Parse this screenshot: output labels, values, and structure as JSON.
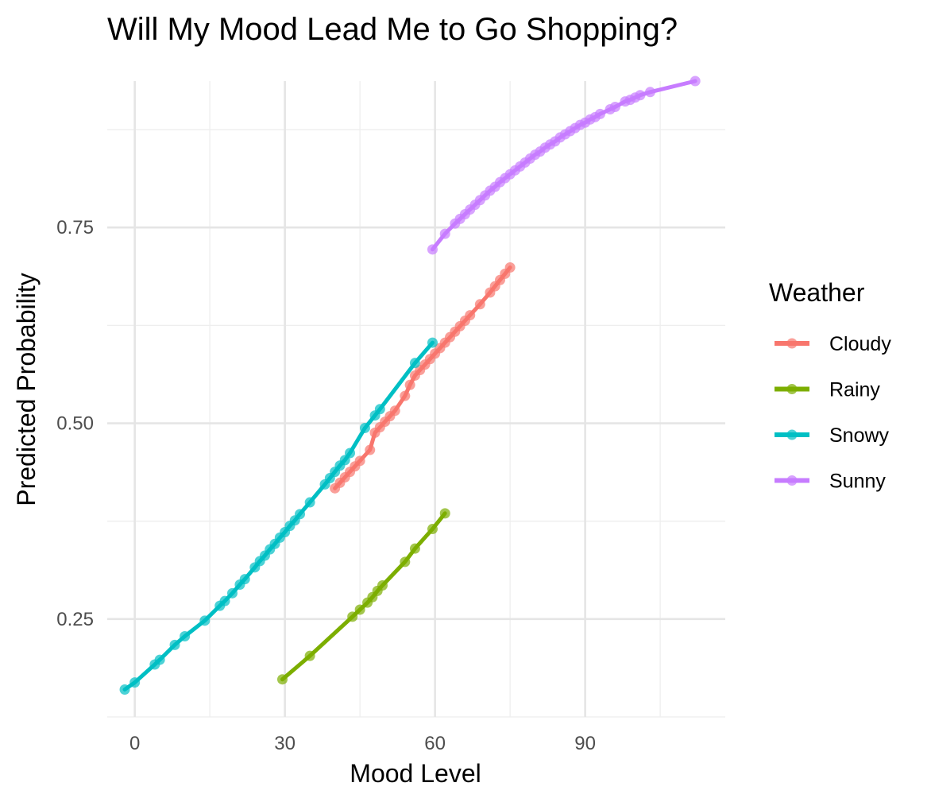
{
  "chart_data": {
    "type": "line",
    "title": "Will My Mood Lead Me to Go Shopping?",
    "xlabel": "Mood Level",
    "ylabel": "Predicted Probability",
    "xlim": [
      -5.5,
      118
    ],
    "ylim": [
      0.125,
      0.937
    ],
    "x_ticks": [
      0,
      30,
      60,
      90
    ],
    "x_tick_labels": [
      "0",
      "30",
      "60",
      "90"
    ],
    "y_ticks": [
      0.25,
      0.5,
      0.75
    ],
    "y_tick_labels": [
      "0.25",
      "0.50",
      "0.75"
    ],
    "grid": true,
    "legend": {
      "title": "Weather",
      "position": "right"
    },
    "series": [
      {
        "name": "Cloudy",
        "color": "#F8766D",
        "x": [
          40,
          41,
          42,
          43,
          44,
          45,
          47,
          48,
          49,
          50,
          51,
          52,
          54,
          55,
          56,
          57,
          58,
          59,
          60,
          61,
          62,
          63,
          64,
          65,
          66,
          67,
          69,
          71,
          72,
          73,
          74,
          75
        ],
        "y": [
          0.417,
          0.424,
          0.431,
          0.438,
          0.445,
          0.452,
          0.466,
          0.488,
          0.495,
          0.502,
          0.509,
          0.516,
          0.535,
          0.549,
          0.561,
          0.568,
          0.575,
          0.582,
          0.589,
          0.596,
          0.603,
          0.61,
          0.617,
          0.624,
          0.631,
          0.638,
          0.652,
          0.667,
          0.675,
          0.683,
          0.691,
          0.699
        ]
      },
      {
        "name": "Rainy",
        "color": "#7CAE00",
        "x": [
          29.5,
          35,
          43.5,
          45,
          46.5,
          47.5,
          48.5,
          49.5,
          54,
          56,
          59.5,
          62
        ],
        "y": [
          0.173,
          0.203,
          0.253,
          0.262,
          0.271,
          0.278,
          0.286,
          0.293,
          0.323,
          0.34,
          0.365,
          0.385
        ]
      },
      {
        "name": "Snowy",
        "color": "#00BFC4",
        "x": [
          -2,
          0,
          4,
          5,
          8,
          10,
          14,
          17,
          18,
          19.5,
          21,
          22,
          24,
          25,
          26,
          27,
          28,
          29,
          30,
          31,
          32,
          33,
          35,
          38,
          39,
          40,
          41,
          42,
          43,
          46,
          48,
          49,
          56,
          59.5
        ],
        "y": [
          0.16,
          0.169,
          0.192,
          0.198,
          0.217,
          0.228,
          0.248,
          0.267,
          0.273,
          0.283,
          0.294,
          0.301,
          0.316,
          0.324,
          0.331,
          0.339,
          0.346,
          0.354,
          0.361,
          0.369,
          0.376,
          0.384,
          0.399,
          0.422,
          0.43,
          0.438,
          0.446,
          0.453,
          0.462,
          0.494,
          0.51,
          0.518,
          0.577,
          0.603
        ]
      },
      {
        "name": "Sunny",
        "color": "#C77CFF",
        "x": [
          59.5,
          62,
          64,
          65,
          66,
          67,
          68,
          69,
          70,
          71,
          72,
          73,
          74,
          75,
          76,
          77,
          78,
          79,
          80,
          81,
          82,
          83,
          84,
          85,
          86,
          87,
          88,
          89,
          90,
          91,
          92,
          93,
          95,
          96,
          98,
          99,
          100,
          101,
          103,
          112
        ],
        "y": [
          0.722,
          0.742,
          0.755,
          0.761,
          0.767,
          0.773,
          0.779,
          0.785,
          0.791,
          0.797,
          0.802,
          0.808,
          0.813,
          0.818,
          0.823,
          0.828,
          0.833,
          0.838,
          0.843,
          0.847,
          0.852,
          0.856,
          0.86,
          0.865,
          0.869,
          0.873,
          0.877,
          0.881,
          0.884,
          0.888,
          0.891,
          0.895,
          0.901,
          0.904,
          0.911,
          0.913,
          0.916,
          0.919,
          0.923,
          0.937
        ]
      }
    ]
  }
}
